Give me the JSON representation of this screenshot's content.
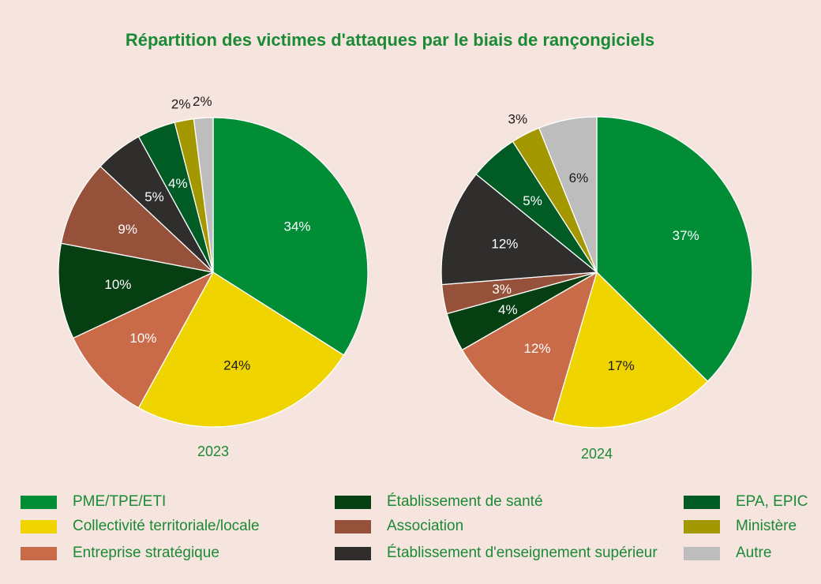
{
  "title": "Répartition des victimes d'attaques par le biais de rançongiciels",
  "chart_data": {
    "type": "pie",
    "categories": [
      "PME/TPE/ETI",
      "Collectivité territoriale/locale",
      "Entreprise stratégique",
      "Établissement de santé",
      "Association",
      "Établissement d'enseignement supérieur",
      "EPA, EPIC",
      "Ministère",
      "Autre"
    ],
    "colors": [
      "#008d36",
      "#f0d400",
      "#c96b48",
      "#063f12",
      "#96513a",
      "#2f2e2d",
      "#005b25",
      "#a49800",
      "#bdbdbd"
    ],
    "series": [
      {
        "name": "2023",
        "slices": [
          {
            "category": "PME/TPE/ETI",
            "value": 34,
            "label": "34%"
          },
          {
            "category": "Collectivité territoriale/locale",
            "value": 24,
            "label": "24%"
          },
          {
            "category": "Entreprise stratégique",
            "value": 10,
            "label": "10%"
          },
          {
            "category": "Établissement de santé",
            "value": 10,
            "label": "10%"
          },
          {
            "category": "Association",
            "value": 9,
            "label": "9%"
          },
          {
            "category": "Établissement d'enseignement supérieur",
            "value": 5,
            "label": "5%"
          },
          {
            "category": "EPA, EPIC",
            "value": 4,
            "label": "4%"
          },
          {
            "category": "Ministère",
            "value": 2,
            "label": "2%"
          },
          {
            "category": "Autre",
            "value": 2,
            "label": "2%"
          }
        ]
      },
      {
        "name": "2024",
        "slices": [
          {
            "category": "PME/TPE/ETI",
            "value": 37,
            "label": "37%"
          },
          {
            "category": "Collectivité territoriale/locale",
            "value": 17,
            "label": "17%"
          },
          {
            "category": "Entreprise stratégique",
            "value": 12,
            "label": "12%"
          },
          {
            "category": "Établissement de santé",
            "value": 4,
            "label": "4%"
          },
          {
            "category": "Association",
            "value": 3,
            "label": "3%"
          },
          {
            "category": "Établissement d'enseignement supérieur",
            "value": 12,
            "label": "12%"
          },
          {
            "category": "EPA, EPIC",
            "value": 5,
            "label": "5%"
          },
          {
            "category": "Ministère",
            "value": 3,
            "label": "3%"
          },
          {
            "category": "Autre",
            "value": 6,
            "label": "6%"
          }
        ]
      }
    ],
    "legend_position": "bottom"
  }
}
